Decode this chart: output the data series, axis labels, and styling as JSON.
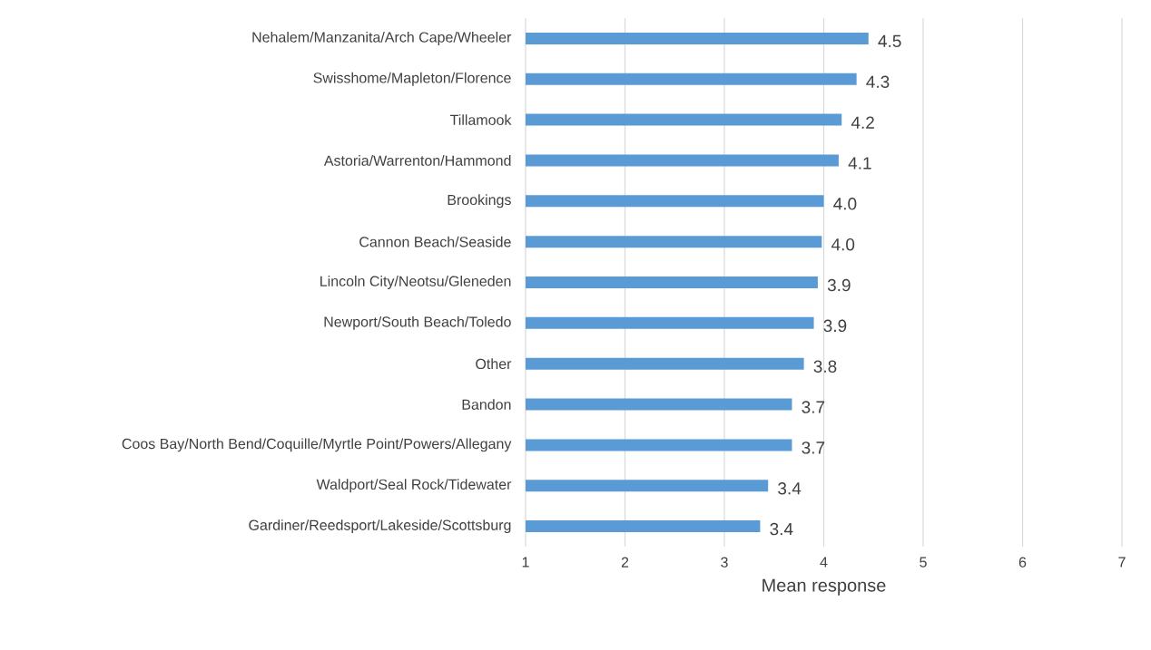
{
  "chart_data": {
    "type": "bar",
    "orientation": "horizontal",
    "categories": [
      "Nehalem/Manzanita/Arch Cape/Wheeler",
      "Swisshome/Mapleton/Florence",
      "Tillamook",
      "Astoria/Warrenton/Hammond",
      "Brookings",
      "Cannon Beach/Seaside",
      "Lincoln City/Neotsu/Gleneden",
      "Newport/South Beach/Toledo",
      "Other",
      "Bandon",
      "Coos Bay/North Bend/Coquille/Myrtle Point/Powers/Allegany",
      "Waldport/Seal Rock/Tidewater",
      "Gardiner/Reedsport/Lakeside/Scottsburg"
    ],
    "values": [
      4.45,
      4.33,
      4.18,
      4.15,
      4.0,
      3.98,
      3.94,
      3.9,
      3.8,
      3.68,
      3.68,
      3.44,
      3.36
    ],
    "value_labels": [
      "4.5",
      "4.3",
      "4.2",
      "4.1",
      "4.0",
      "4.0",
      "3.9",
      "3.9",
      "3.8",
      "3.7",
      "3.7",
      "3.4",
      "3.4"
    ],
    "color": "#5b9bd5",
    "xlabel": "Mean response",
    "xlim": [
      1,
      7
    ],
    "xticks": [
      1,
      2,
      3,
      4,
      5,
      6,
      7
    ],
    "grid": "x"
  }
}
